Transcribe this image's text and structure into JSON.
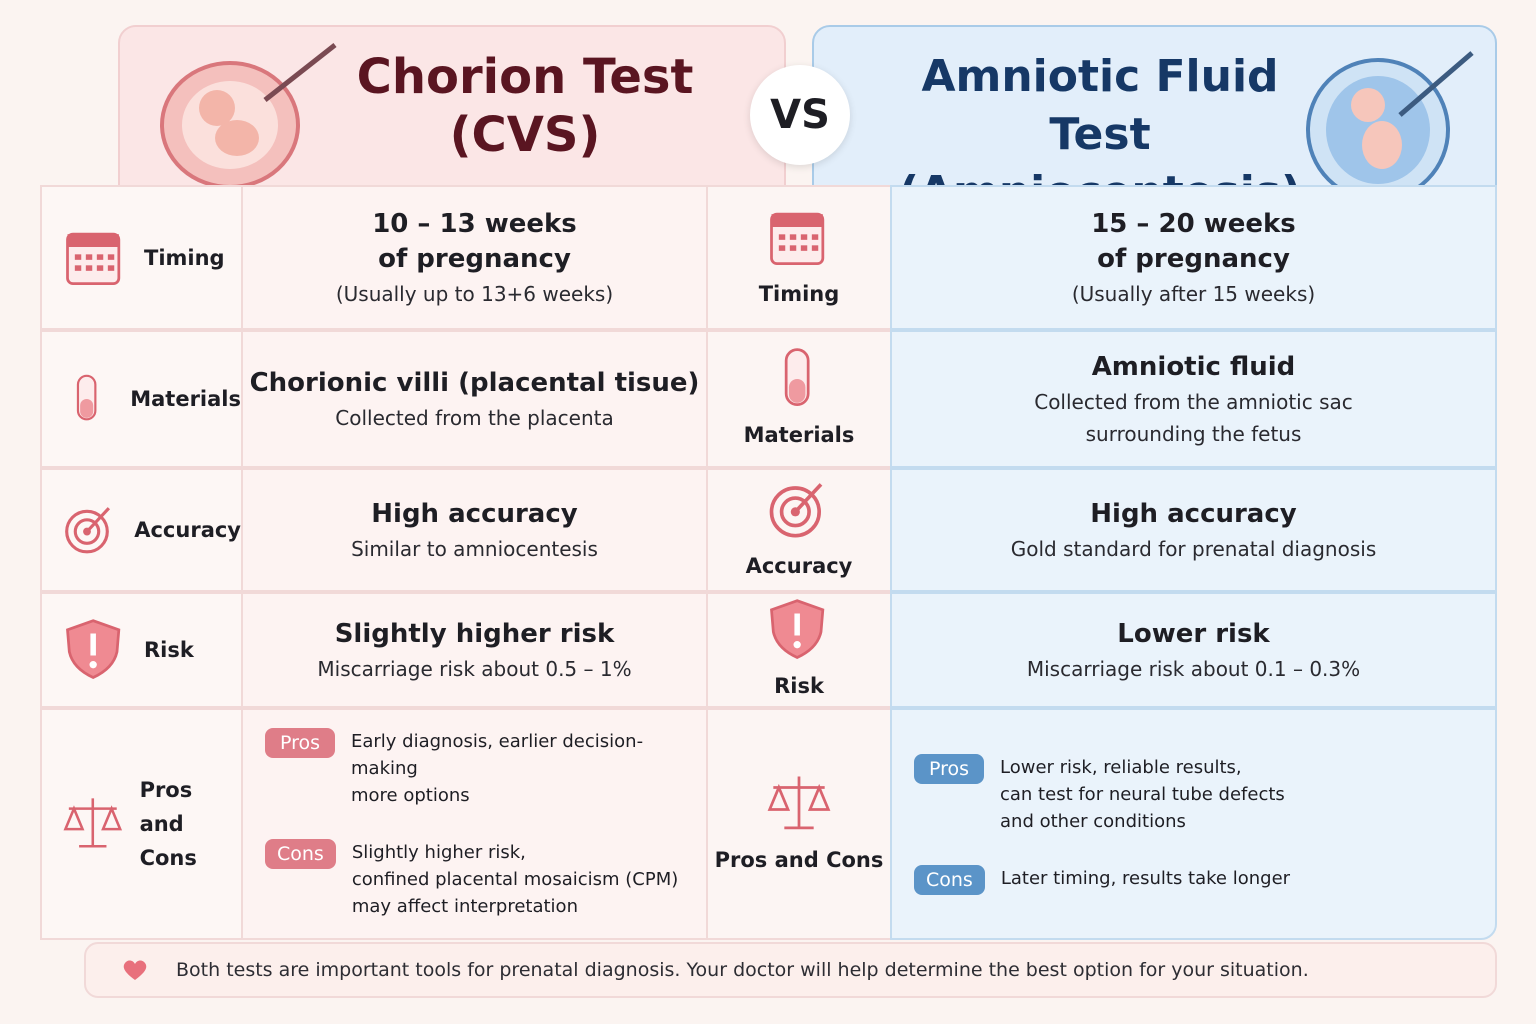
{
  "header": {
    "left_title": [
      "Chorion Test",
      "(CVS)"
    ],
    "vs": "VS",
    "right_title": [
      "Amniotic Fluid Test",
      "(Amniocentesis)"
    ]
  },
  "rows": [
    {
      "left_label": [
        "Timing"
      ],
      "left_main": [
        "10 – 13 weeks",
        "of pregnancy"
      ],
      "left_sub": [
        "(Usually up to 13+6 weeks)"
      ],
      "right_label": [
        "Timing"
      ],
      "right_main": [
        "15 – 20 weeks",
        "of pregnancy"
      ],
      "right_sub": [
        "(Usually after 15 weeks)"
      ]
    },
    {
      "left_label": [
        "Materials"
      ],
      "left_main": [
        "Chorionic villi (placental tisue)"
      ],
      "left_sub": [
        "Collected from the placenta"
      ],
      "right_label": [
        "Materials"
      ],
      "right_main": [
        "Amniotic fluid"
      ],
      "right_sub": [
        "Collected from the amniotic sac",
        "surrounding the fetus"
      ]
    },
    {
      "left_label": [
        "Accuracy"
      ],
      "left_main": [
        "High accuracy"
      ],
      "left_sub": [
        "Similar to amniocentesis"
      ],
      "right_label": [
        "Accuracy"
      ],
      "right_main": [
        "High accuracy"
      ],
      "right_sub": [
        "Gold standard for prenatal diagnosis"
      ]
    },
    {
      "left_label": [
        "Risk"
      ],
      "left_main": [
        "Slightly higher risk"
      ],
      "left_sub": [
        "Miscarriage risk about 0.5 – 1%"
      ],
      "right_label": [
        "Risk"
      ],
      "right_main": [
        "Lower risk"
      ],
      "right_sub": [
        "Miscarriage risk about 0.1 – 0.3%"
      ]
    },
    {
      "left_label": [
        "Pros",
        "and Cons"
      ],
      "left_items": [
        {
          "tag": "Pros",
          "lines": [
            "Early diagnosis, earlier decision-making",
            "more options"
          ]
        },
        {
          "tag": "Cons",
          "lines": [
            "Slightly higher risk,",
            "confined placental mosaicism (CPM)",
            "may affect interpretation"
          ]
        }
      ],
      "right_label": [
        "Pros and Cons"
      ],
      "right_items": [
        {
          "tag": "Pros",
          "lines": [
            "Lower risk, reliable results,",
            "can test for neural tube defects",
            "and other conditions"
          ]
        },
        {
          "tag": "Cons",
          "lines": [
            "Later timing, results take longer"
          ]
        }
      ]
    }
  ],
  "footer": "Both tests are important tools for prenatal diagnosis. Your doctor will help determine the best option for your situation."
}
